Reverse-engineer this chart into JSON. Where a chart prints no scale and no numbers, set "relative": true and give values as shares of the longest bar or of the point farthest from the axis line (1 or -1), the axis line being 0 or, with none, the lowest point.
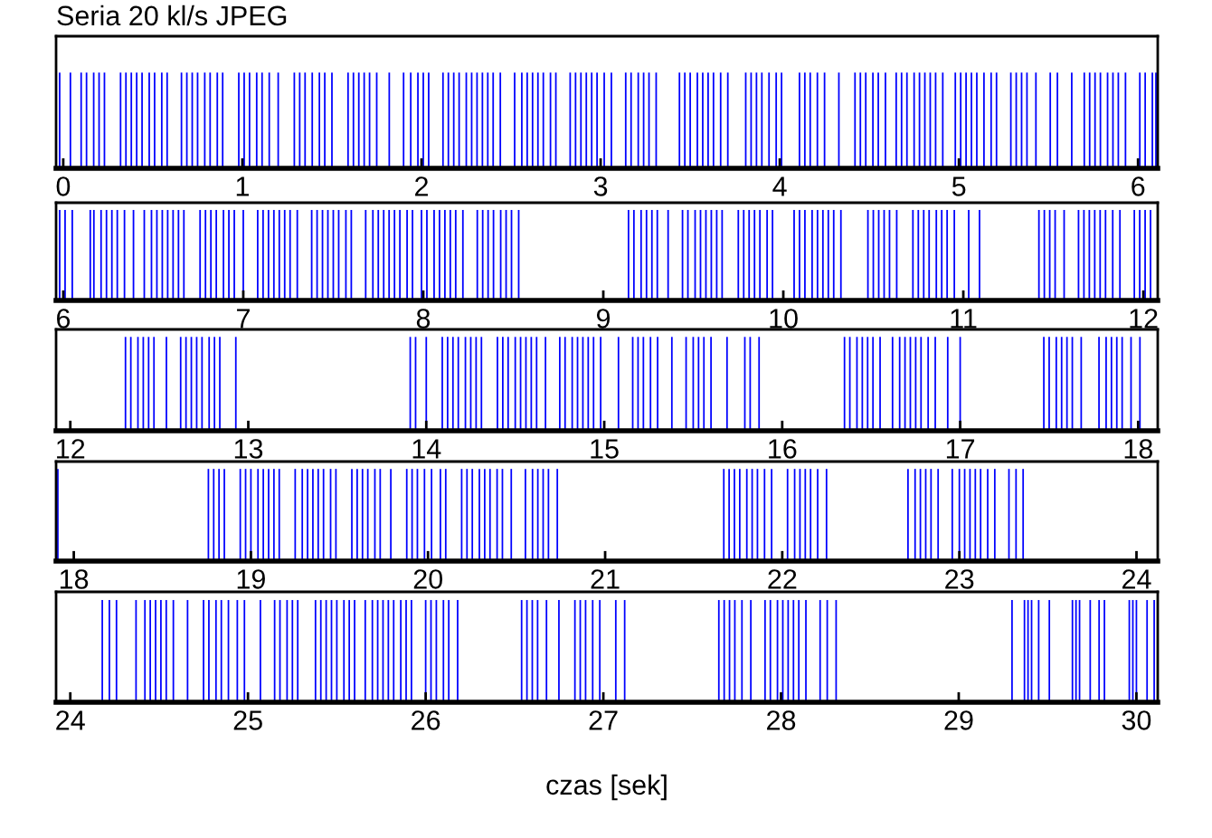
{
  "chart_data": [
    {
      "type": "bar",
      "title": "Seria 20 kl/s JPEG",
      "relative": true,
      "color": "#0000ff",
      "xlim": [
        -0.04,
        6.11
      ],
      "xticks": [
        0,
        1,
        2,
        3,
        4,
        5,
        6
      ],
      "tick_labels": "x",
      "x": [
        -0.02,
        0.04,
        0.1,
        0.13,
        0.17,
        0.2,
        0.23,
        0.32,
        0.35,
        0.38,
        0.41,
        0.44,
        0.48,
        0.51,
        0.55,
        0.58,
        0.66,
        0.69,
        0.72,
        0.75,
        0.79,
        0.82,
        0.86,
        0.89,
        0.98,
        1.01,
        1.04,
        1.08,
        1.11,
        1.15,
        1.2,
        1.29,
        1.32,
        1.35,
        1.39,
        1.43,
        1.46,
        1.5,
        1.59,
        1.62,
        1.65,
        1.68,
        1.71,
        1.75,
        1.82,
        1.9,
        1.94,
        1.98,
        2.01,
        2.04,
        2.12,
        2.15,
        2.18,
        2.21,
        2.25,
        2.28,
        2.31,
        2.34,
        2.37,
        2.4,
        2.44,
        2.52,
        2.56,
        2.59,
        2.62,
        2.65,
        2.68,
        2.72,
        2.75,
        2.83,
        2.86,
        2.89,
        2.92,
        2.95,
        2.98,
        3.02,
        3.06,
        3.14,
        3.17,
        3.21,
        3.24,
        3.27,
        3.31,
        3.44,
        3.47,
        3.5,
        3.54,
        3.57,
        3.6,
        3.63,
        3.67,
        3.71,
        3.81,
        3.84,
        3.87,
        3.9,
        3.94,
        3.98,
        4.01,
        4.11,
        4.14,
        4.17,
        4.21,
        4.25,
        4.33,
        4.42,
        4.45,
        4.48,
        4.52,
        4.55,
        4.59,
        4.65,
        4.68,
        4.71,
        4.75,
        4.78,
        4.81,
        4.84,
        4.87,
        4.91,
        4.98,
        5.01,
        5.04,
        5.07,
        5.1,
        5.14,
        5.18,
        5.21,
        5.29,
        5.32,
        5.35,
        5.38,
        5.43,
        5.51,
        5.55,
        5.63,
        5.7,
        5.73,
        5.76,
        5.79,
        5.83,
        5.86,
        5.89,
        5.93,
        6.01,
        6.04,
        6.08,
        6.1
      ],
      "values": [
        1,
        1,
        1,
        1,
        1,
        1,
        1,
        1,
        1,
        1,
        1,
        1,
        1,
        1,
        1,
        1,
        1,
        1,
        1,
        1,
        1,
        1,
        1,
        1,
        1,
        1,
        1,
        1,
        1,
        1,
        1,
        1,
        1,
        1,
        1,
        1,
        1,
        1,
        1,
        1,
        1,
        1,
        1,
        1,
        1,
        1,
        1,
        1,
        1,
        1,
        1,
        1,
        1,
        1,
        1,
        1,
        1,
        1,
        1,
        1,
        1,
        1,
        1,
        1,
        1,
        1,
        1,
        1,
        1,
        1,
        1,
        1,
        1,
        1,
        1,
        1,
        1,
        1,
        1,
        1,
        1,
        1,
        1,
        1,
        1,
        1,
        1,
        1,
        1,
        1,
        1,
        1,
        1,
        1,
        1,
        1,
        1,
        1,
        1,
        1,
        1,
        1,
        1,
        1,
        1,
        1,
        1,
        1,
        1,
        1,
        1,
        1,
        1,
        1,
        1,
        1,
        1,
        1,
        1,
        1,
        1,
        1,
        1,
        1,
        1,
        1,
        1,
        1,
        1,
        1,
        1,
        1,
        1,
        1,
        1,
        1,
        1,
        1,
        1,
        1,
        1,
        1,
        1,
        1,
        1,
        1,
        1,
        1
      ]
    },
    {
      "type": "bar",
      "relative": true,
      "color": "#0000ff",
      "xlim": [
        5.96,
        12.08
      ],
      "xticks": [
        6,
        7,
        8,
        9,
        10,
        11,
        12
      ],
      "tick_labels": "x",
      "x": [
        5.98,
        6.01,
        6.05,
        6.15,
        6.17,
        6.21,
        6.24,
        6.27,
        6.3,
        6.34,
        6.39,
        6.45,
        6.49,
        6.52,
        6.55,
        6.58,
        6.61,
        6.64,
        6.67,
        6.76,
        6.79,
        6.82,
        6.85,
        6.89,
        6.92,
        6.95,
        7.0,
        7.08,
        7.11,
        7.14,
        7.17,
        7.2,
        7.23,
        7.26,
        7.3,
        7.38,
        7.41,
        7.44,
        7.47,
        7.5,
        7.53,
        7.57,
        7.6,
        7.68,
        7.72,
        7.75,
        7.78,
        7.81,
        7.84,
        7.87,
        7.91,
        7.94,
        7.99,
        8.02,
        8.06,
        8.09,
        8.12,
        8.15,
        8.18,
        8.22,
        8.3,
        8.33,
        8.36,
        8.39,
        8.43,
        8.46,
        8.49,
        8.53,
        9.14,
        9.17,
        9.21,
        9.24,
        9.27,
        9.3,
        9.36,
        9.44,
        9.47,
        9.51,
        9.54,
        9.57,
        9.6,
        9.63,
        9.66,
        9.75,
        9.78,
        9.81,
        9.84,
        9.87,
        9.91,
        9.94,
        10.06,
        10.09,
        10.12,
        10.16,
        10.19,
        10.22,
        10.25,
        10.28,
        10.32,
        10.47,
        10.5,
        10.53,
        10.56,
        10.59,
        10.63,
        10.72,
        10.75,
        10.78,
        10.81,
        10.85,
        10.88,
        10.91,
        10.95,
        11.03,
        11.09,
        11.42,
        11.45,
        11.48,
        11.51,
        11.56,
        11.64,
        11.67,
        11.7,
        11.73,
        11.76,
        11.79,
        11.83,
        11.87,
        11.95,
        11.98,
        12.01,
        12.04
      ],
      "values": [
        1,
        1,
        1,
        1,
        1,
        1,
        1,
        1,
        1,
        1,
        1,
        1,
        1,
        1,
        1,
        1,
        1,
        1,
        1,
        1,
        1,
        1,
        1,
        1,
        1,
        1,
        1,
        1,
        1,
        1,
        1,
        1,
        1,
        1,
        1,
        1,
        1,
        1,
        1,
        1,
        1,
        1,
        1,
        1,
        1,
        1,
        1,
        1,
        1,
        1,
        1,
        1,
        1,
        1,
        1,
        1,
        1,
        1,
        1,
        1,
        1,
        1,
        1,
        1,
        1,
        1,
        1,
        1,
        1,
        1,
        1,
        1,
        1,
        1,
        1,
        1,
        1,
        1,
        1,
        1,
        1,
        1,
        1,
        1,
        1,
        1,
        1,
        1,
        1,
        1,
        1,
        1,
        1,
        1,
        1,
        1,
        1,
        1,
        1,
        1,
        1,
        1,
        1,
        1,
        1,
        1,
        1,
        1,
        1,
        1,
        1,
        1,
        1,
        1,
        1,
        1,
        1,
        1,
        1,
        1,
        1,
        1,
        1,
        1,
        1,
        1,
        1,
        1,
        1,
        1,
        1,
        1
      ]
    },
    {
      "type": "bar",
      "relative": true,
      "color": "#0000ff",
      "xlim": [
        11.92,
        18.11
      ],
      "xticks": [
        12,
        13,
        14,
        15,
        16,
        17,
        18
      ],
      "tick_labels": "x",
      "x": [
        12.31,
        12.34,
        12.38,
        12.41,
        12.44,
        12.47,
        12.54,
        12.62,
        12.65,
        12.68,
        12.71,
        12.74,
        12.78,
        12.81,
        12.84,
        12.93,
        13.91,
        13.94,
        14.0,
        14.09,
        14.12,
        14.15,
        14.18,
        14.22,
        14.25,
        14.28,
        14.31,
        14.4,
        14.43,
        14.46,
        14.5,
        14.53,
        14.56,
        14.59,
        14.62,
        14.67,
        14.75,
        14.78,
        14.82,
        14.85,
        14.88,
        14.91,
        14.94,
        14.98,
        15.08,
        15.16,
        15.19,
        15.22,
        15.26,
        15.3,
        15.38,
        15.46,
        15.5,
        15.53,
        15.56,
        15.6,
        15.69,
        15.79,
        15.82,
        15.87,
        16.35,
        16.38,
        16.42,
        16.45,
        16.48,
        16.51,
        16.55,
        16.62,
        16.66,
        16.69,
        16.72,
        16.75,
        16.78,
        16.82,
        16.86,
        16.93,
        17.0,
        17.47,
        17.5,
        17.54,
        17.57,
        17.6,
        17.63,
        17.68,
        17.78,
        17.82,
        17.85,
        17.88,
        17.91,
        17.96,
        18.01
      ],
      "values": [
        1,
        1,
        1,
        1,
        1,
        1,
        1,
        1,
        1,
        1,
        1,
        1,
        1,
        1,
        1,
        1,
        1,
        1,
        1,
        1,
        1,
        1,
        1,
        1,
        1,
        1,
        1,
        1,
        1,
        1,
        1,
        1,
        1,
        1,
        1,
        1,
        1,
        1,
        1,
        1,
        1,
        1,
        1,
        1,
        1,
        1,
        1,
        1,
        1,
        1,
        1,
        1,
        1,
        1,
        1,
        1,
        1,
        1,
        1,
        1,
        1,
        1,
        1,
        1,
        1,
        1,
        1,
        1,
        1,
        1,
        1,
        1,
        1,
        1,
        1,
        1,
        1,
        1,
        1,
        1,
        1,
        1,
        1,
        1,
        1,
        1,
        1,
        1,
        1,
        1,
        1
      ]
    },
    {
      "type": "bar",
      "relative": true,
      "color": "#0000ff",
      "xlim": [
        17.9,
        24.12
      ],
      "xticks": [
        18,
        19,
        20,
        21,
        22,
        23,
        24
      ],
      "tick_labels": "x",
      "x": [
        17.91,
        18.76,
        18.79,
        18.82,
        18.85,
        18.94,
        18.97,
        19.0,
        19.04,
        19.07,
        19.1,
        19.13,
        19.16,
        19.25,
        19.29,
        19.32,
        19.35,
        19.38,
        19.41,
        19.45,
        19.48,
        19.57,
        19.6,
        19.63,
        19.66,
        19.7,
        19.73,
        19.79,
        19.88,
        19.91,
        19.94,
        19.98,
        20.02,
        20.07,
        20.1,
        20.19,
        20.22,
        20.25,
        20.29,
        20.32,
        20.35,
        20.39,
        20.42,
        20.47,
        20.55,
        20.59,
        20.62,
        20.65,
        20.68,
        20.73,
        21.67,
        21.7,
        21.73,
        21.76,
        21.8,
        21.83,
        21.86,
        21.9,
        21.94,
        22.03,
        22.07,
        22.1,
        22.13,
        22.16,
        22.2,
        22.25,
        22.71,
        22.75,
        22.78,
        22.81,
        22.84,
        22.88,
        22.96,
        23.0,
        23.03,
        23.06,
        23.09,
        23.12,
        23.16,
        23.2,
        23.28,
        23.32,
        23.36
      ],
      "values": [
        1,
        1,
        1,
        1,
        1,
        1,
        1,
        1,
        1,
        1,
        1,
        1,
        1,
        1,
        1,
        1,
        1,
        1,
        1,
        1,
        1,
        1,
        1,
        1,
        1,
        1,
        1,
        1,
        1,
        1,
        1,
        1,
        1,
        1,
        1,
        1,
        1,
        1,
        1,
        1,
        1,
        1,
        1,
        1,
        1,
        1,
        1,
        1,
        1,
        1,
        1,
        1,
        1,
        1,
        1,
        1,
        1,
        1,
        1,
        1,
        1,
        1,
        1,
        1,
        1,
        1,
        1,
        1,
        1,
        1,
        1,
        1,
        1,
        1,
        1,
        1,
        1,
        1,
        1,
        1,
        1,
        1,
        1
      ]
    },
    {
      "type": "bar",
      "relative": true,
      "color": "#0000ff",
      "xlim": [
        23.92,
        30.12
      ],
      "xticks": [
        24,
        25,
        26,
        27,
        28,
        29,
        30
      ],
      "tick_labels": "x",
      "xlabel": "czas [sek]",
      "x": [
        24.18,
        24.22,
        24.26,
        24.37,
        24.42,
        24.45,
        24.48,
        24.51,
        24.54,
        24.58,
        24.66,
        24.75,
        24.78,
        24.82,
        24.85,
        24.89,
        24.94,
        24.98,
        25.07,
        25.15,
        25.18,
        25.22,
        25.25,
        25.28,
        25.38,
        25.41,
        25.44,
        25.47,
        25.5,
        25.54,
        25.57,
        25.6,
        25.66,
        25.7,
        25.73,
        25.76,
        25.79,
        25.82,
        25.86,
        25.89,
        25.92,
        26.0,
        26.03,
        26.06,
        26.1,
        26.13,
        26.18,
        26.54,
        26.57,
        26.6,
        26.63,
        26.68,
        26.75,
        26.84,
        26.87,
        26.9,
        26.94,
        26.98,
        27.07,
        27.12,
        27.65,
        27.68,
        27.71,
        27.74,
        27.78,
        27.83,
        27.91,
        27.94,
        27.98,
        28.01,
        28.04,
        28.07,
        28.1,
        28.14,
        28.22,
        28.26,
        28.31,
        29.3,
        29.37,
        29.39,
        29.41,
        29.45,
        29.51,
        29.64,
        29.66,
        29.68,
        29.74,
        29.79,
        29.82,
        29.96,
        29.98,
        30.0,
        30.06,
        30.1
      ],
      "values": [
        1,
        1,
        1,
        1,
        1,
        1,
        1,
        1,
        1,
        1,
        1,
        1,
        1,
        1,
        1,
        1,
        1,
        1,
        1,
        1,
        1,
        1,
        1,
        1,
        1,
        1,
        1,
        1,
        1,
        1,
        1,
        1,
        1,
        1,
        1,
        1,
        1,
        1,
        1,
        1,
        1,
        1,
        1,
        1,
        1,
        1,
        1,
        1,
        1,
        1,
        1,
        1,
        1,
        1,
        1,
        1,
        1,
        1,
        1,
        1,
        1,
        1,
        1,
        1,
        1,
        1,
        1,
        1,
        1,
        1,
        1,
        1,
        1,
        1,
        1,
        1,
        1,
        1,
        1,
        1,
        1,
        1,
        1,
        1,
        1,
        1,
        1,
        1,
        1,
        1,
        1,
        1,
        1,
        1
      ]
    }
  ]
}
